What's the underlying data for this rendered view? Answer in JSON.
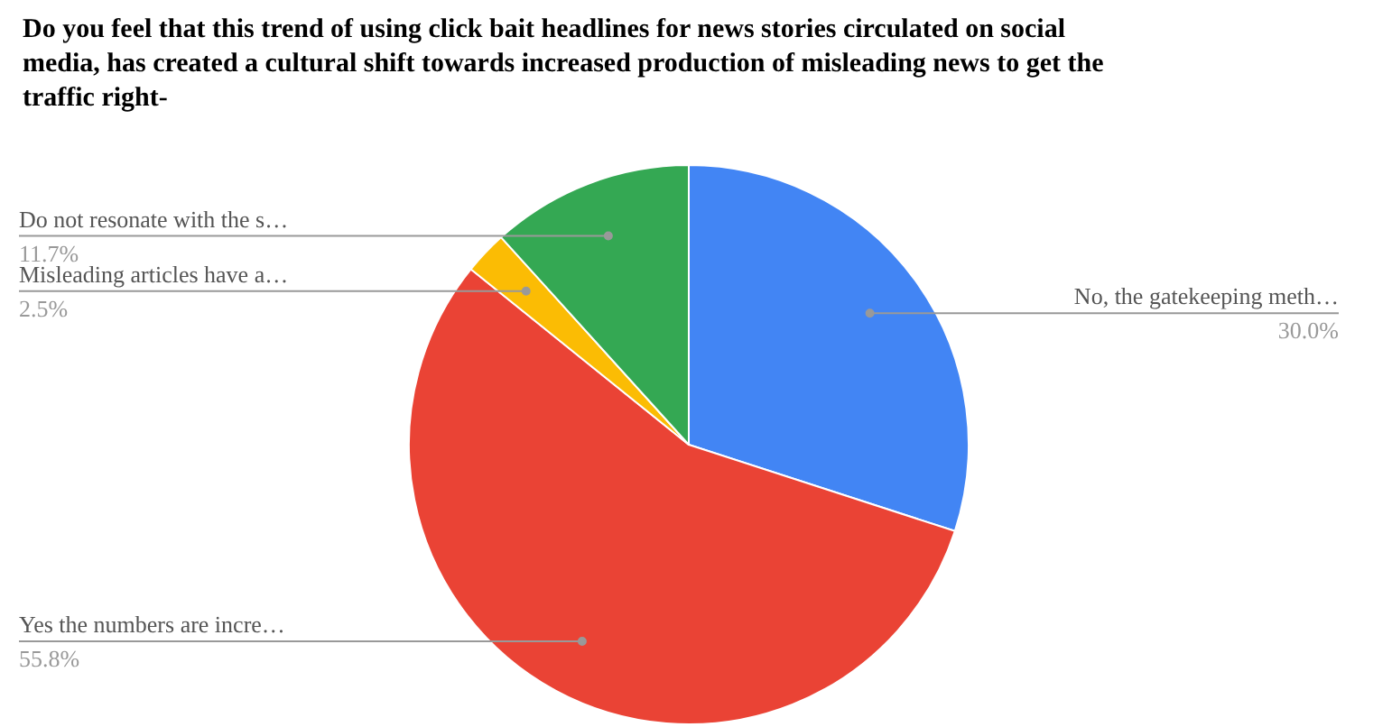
{
  "chart_data": {
    "type": "pie",
    "title": "Do you feel that this trend of using click bait headlines for news stories circulated on social media, has created a cultural shift towards increased production of misleading news to get the traffic right-",
    "categories": [
      "No, the gatekeeping meth…",
      "Yes the numbers are incre…",
      "Misleading articles have a…",
      "Do not resonate with the s…"
    ],
    "values": [
      30.0,
      55.8,
      2.5,
      11.7
    ],
    "colors": [
      "#4285f4",
      "#ea4335",
      "#fbbc04",
      "#34a853"
    ],
    "value_labels": [
      "30.0%",
      "55.8%",
      "2.5%",
      "11.7%"
    ]
  }
}
